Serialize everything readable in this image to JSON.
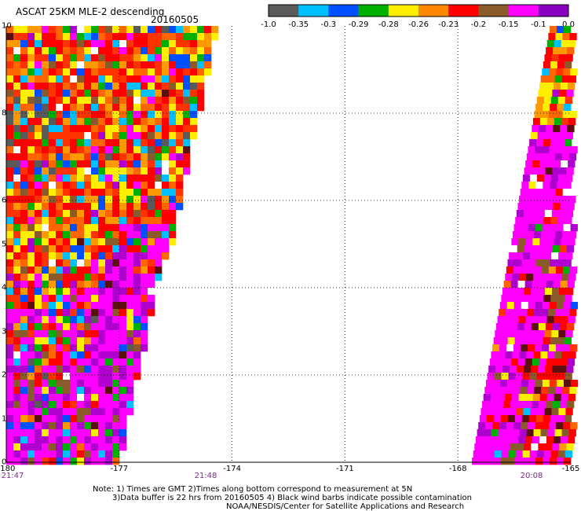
{
  "header": {
    "title": "ASCAT 25KM MLE-2 descending",
    "date": "20160505"
  },
  "colorbar": {
    "colors": [
      "#5a5a5a",
      "#00bfff",
      "#0050ff",
      "#00b000",
      "#ffee00",
      "#ff8800",
      "#ff0000",
      "#8b5a2b",
      "#ff00ff",
      "#8a00c0"
    ],
    "labels": [
      "-1.0",
      "-0.35",
      "-0.3",
      "-0.29",
      "-0.28",
      "-0.26",
      "-0.23",
      "-0.2",
      "-0.15",
      "-0.1",
      "0.0"
    ]
  },
  "axes": {
    "y_labels": [
      "10",
      "8",
      "6",
      "5",
      "4",
      "3",
      "2",
      "1",
      "0"
    ],
    "x_labels": [
      "-180",
      "-177",
      "-174",
      "-171",
      "-168",
      "-165"
    ],
    "x_range": [
      -180,
      -165
    ],
    "y_range": [
      0,
      10
    ],
    "grid": "dotted"
  },
  "time_labels": [
    "21:47",
    "21:48",
    "20:08"
  ],
  "swaths": [
    {
      "name": "west",
      "lon_range": [
        -180,
        -174.7
      ],
      "lat_range": [
        0,
        10
      ]
    },
    {
      "name": "east",
      "lon_range": [
        -167.8,
        -165
      ],
      "lat_range": [
        0,
        10
      ]
    }
  ],
  "notes": [
    "Note: 1) Times are GMT 2)Times along bottom correspond to measurement at 5N",
    "3)Data buffer is 22 hrs from 20160505 4) Black wind barbs indicate possible contamination",
    "NOAA/NESDIS/Center for Satellite Applications and Research"
  ]
}
